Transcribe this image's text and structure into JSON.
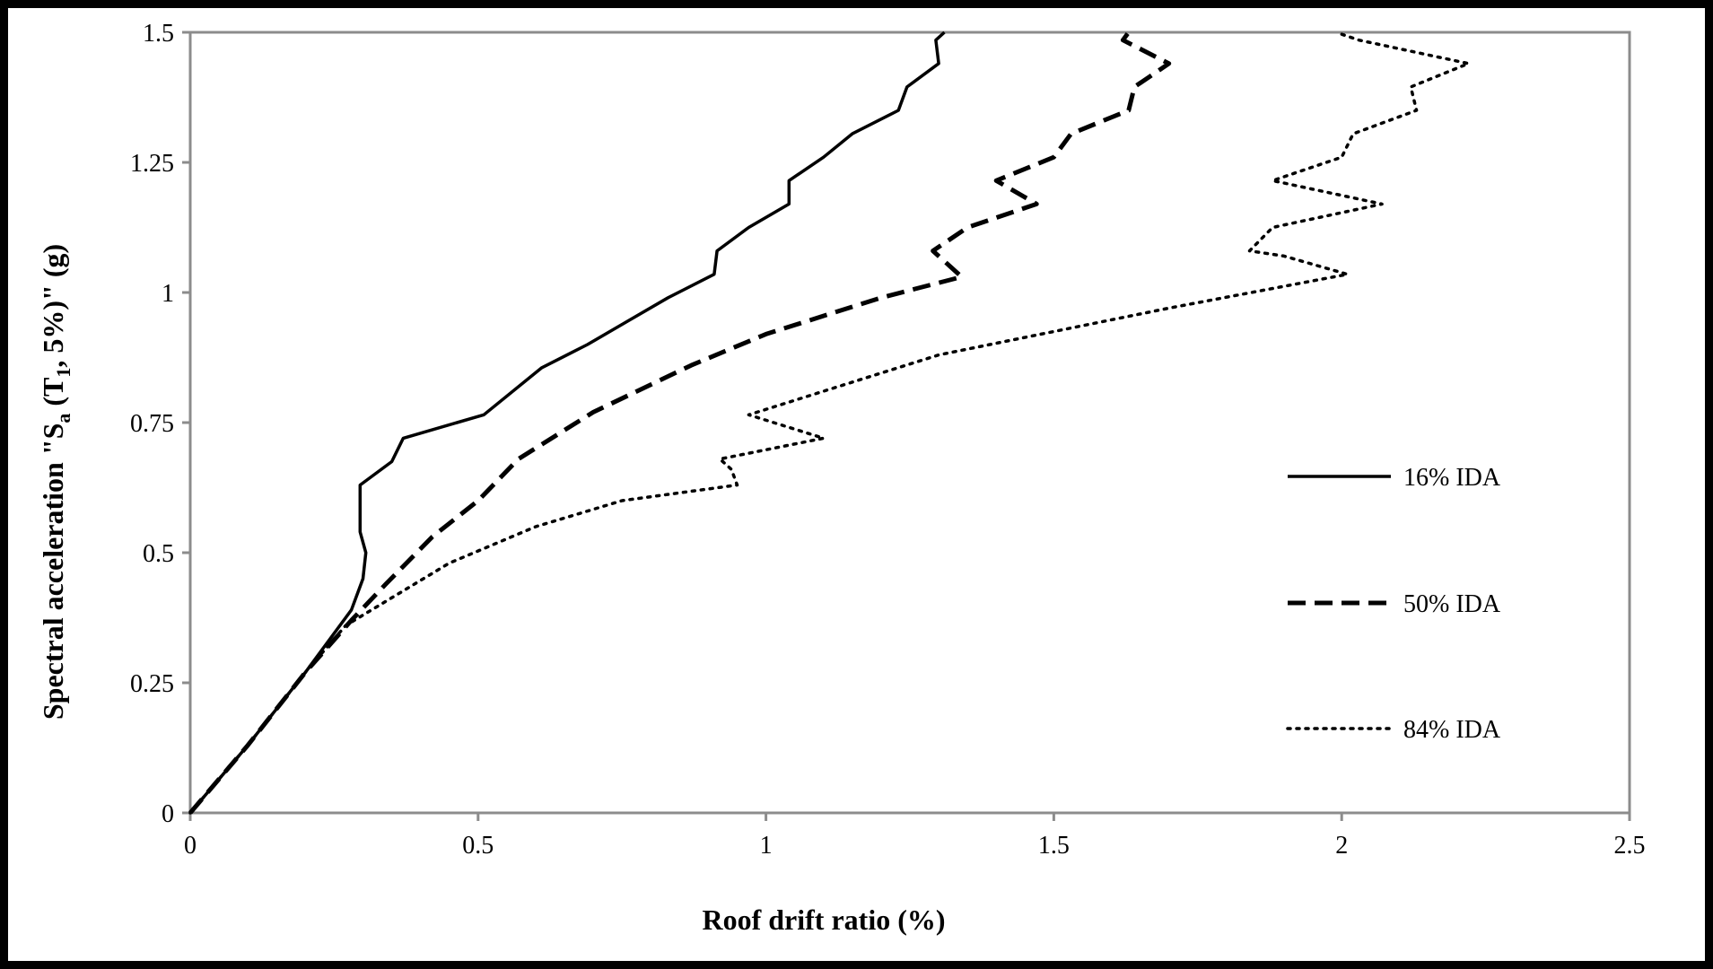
{
  "chart_data": {
    "type": "line",
    "xlabel": "Roof drift ratio (%)",
    "ylabel": {
      "prefix": "Spectral acceleration  \"S",
      "sub1": "a",
      "mid": " (T",
      "sub2": "1",
      "suffix": ", 5%)\"  (g)"
    },
    "xlim": [
      0,
      2.5
    ],
    "ylim": [
      0,
      1.5
    ],
    "xticks": [
      "0",
      "0.5",
      "1",
      "1.5",
      "2",
      "2.5"
    ],
    "yticks": [
      "0",
      "0.25",
      "0.5",
      "0.75",
      "1",
      "1.25",
      "1.5"
    ],
    "grid": false,
    "legend_position": "right",
    "series": [
      {
        "name": "16% IDA",
        "style": "solid",
        "points": [
          [
            0,
            0
          ],
          [
            0.1,
            0.13
          ],
          [
            0.2,
            0.27
          ],
          [
            0.28,
            0.39
          ],
          [
            0.3,
            0.45
          ],
          [
            0.305,
            0.5
          ],
          [
            0.295,
            0.54
          ],
          [
            0.295,
            0.63
          ],
          [
            0.35,
            0.675
          ],
          [
            0.37,
            0.72
          ],
          [
            0.51,
            0.765
          ],
          [
            0.61,
            0.855
          ],
          [
            0.69,
            0.9
          ],
          [
            0.76,
            0.945
          ],
          [
            0.83,
            0.99
          ],
          [
            0.91,
            1.035
          ],
          [
            0.915,
            1.08
          ],
          [
            0.97,
            1.125
          ],
          [
            1.04,
            1.17
          ],
          [
            1.04,
            1.215
          ],
          [
            1.1,
            1.26
          ],
          [
            1.15,
            1.305
          ],
          [
            1.23,
            1.35
          ],
          [
            1.245,
            1.395
          ],
          [
            1.3,
            1.44
          ],
          [
            1.295,
            1.485
          ],
          [
            1.31,
            1.5
          ]
        ]
      },
      {
        "name": "50% IDA",
        "style": "dashed",
        "points": [
          [
            0,
            0
          ],
          [
            0.1,
            0.13
          ],
          [
            0.2,
            0.27
          ],
          [
            0.28,
            0.37
          ],
          [
            0.34,
            0.44
          ],
          [
            0.42,
            0.53
          ],
          [
            0.5,
            0.6
          ],
          [
            0.57,
            0.68
          ],
          [
            0.7,
            0.77
          ],
          [
            0.87,
            0.86
          ],
          [
            1.0,
            0.92
          ],
          [
            1.2,
            0.99
          ],
          [
            1.34,
            1.03
          ],
          [
            1.32,
            1.05
          ],
          [
            1.29,
            1.08
          ],
          [
            1.35,
            1.125
          ],
          [
            1.47,
            1.17
          ],
          [
            1.4,
            1.215
          ],
          [
            1.5,
            1.26
          ],
          [
            1.53,
            1.305
          ],
          [
            1.63,
            1.35
          ],
          [
            1.64,
            1.395
          ],
          [
            1.7,
            1.44
          ],
          [
            1.62,
            1.485
          ],
          [
            1.63,
            1.5
          ]
        ]
      },
      {
        "name": "84% IDA",
        "style": "dotted",
        "points": [
          [
            0,
            0
          ],
          [
            0.1,
            0.13
          ],
          [
            0.2,
            0.27
          ],
          [
            0.27,
            0.36
          ],
          [
            0.33,
            0.4
          ],
          [
            0.45,
            0.48
          ],
          [
            0.6,
            0.55
          ],
          [
            0.75,
            0.6
          ],
          [
            0.95,
            0.63
          ],
          [
            0.94,
            0.66
          ],
          [
            0.92,
            0.68
          ],
          [
            1.1,
            0.72
          ],
          [
            0.97,
            0.765
          ],
          [
            1.3,
            0.88
          ],
          [
            1.7,
            0.97
          ],
          [
            2.01,
            1.035
          ],
          [
            1.9,
            1.07
          ],
          [
            1.84,
            1.08
          ],
          [
            1.88,
            1.125
          ],
          [
            2.07,
            1.17
          ],
          [
            1.88,
            1.215
          ],
          [
            2.0,
            1.26
          ],
          [
            2.02,
            1.305
          ],
          [
            2.13,
            1.35
          ],
          [
            2.12,
            1.395
          ],
          [
            2.22,
            1.44
          ],
          [
            2.03,
            1.485
          ],
          [
            1.99,
            1.5
          ]
        ]
      }
    ]
  }
}
